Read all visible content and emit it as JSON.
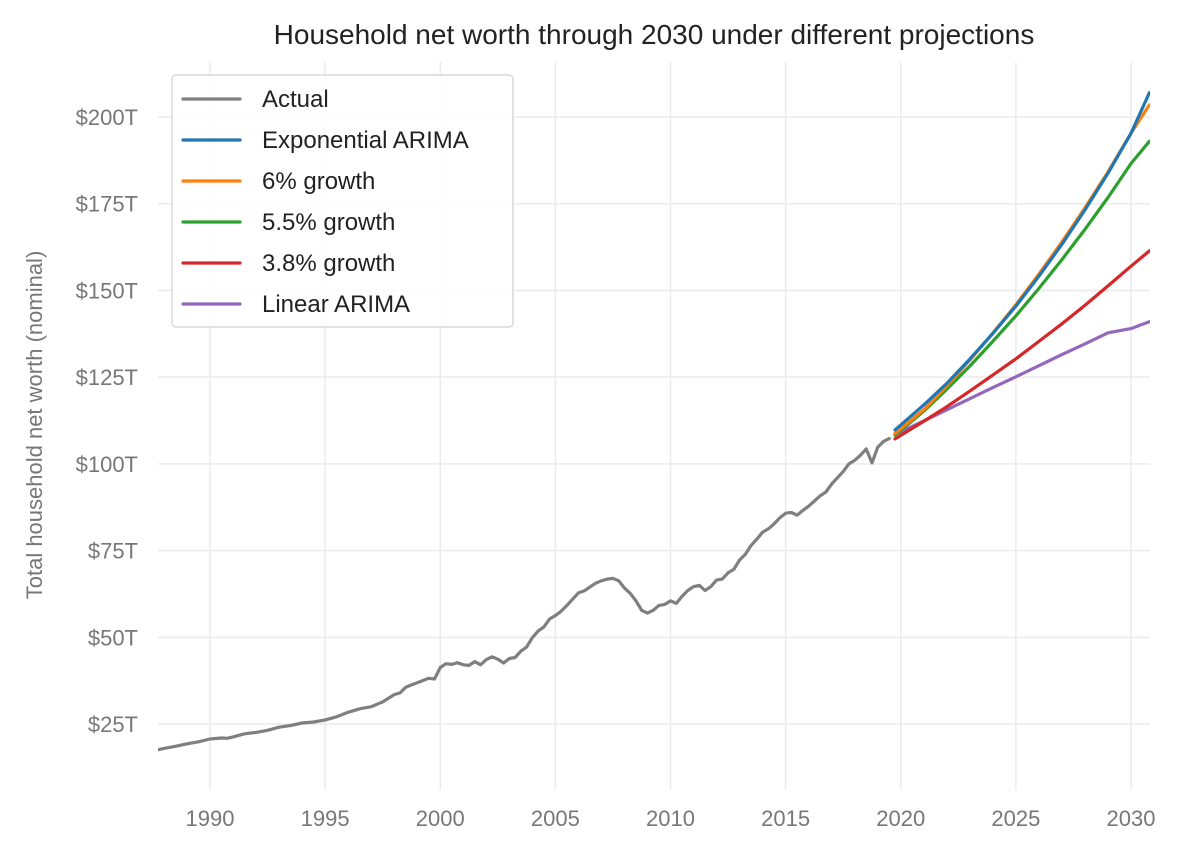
{
  "chart_data": {
    "type": "line",
    "title": "Household net worth through 2030 under different projections",
    "xlabel": "",
    "ylabel": "Total household net worth (nominal)",
    "xlim": [
      1987.75,
      2030.8
    ],
    "ylim": [
      0,
      212
    ],
    "grid": true,
    "legend_position": "top-left",
    "x_ticks": [
      1990,
      1995,
      2000,
      2005,
      2010,
      2015,
      2020,
      2025,
      2030
    ],
    "x_tick_labels": [
      "1990",
      "1995",
      "2000",
      "2005",
      "2010",
      "2015",
      "2020",
      "2025",
      "2030"
    ],
    "y_ticks": [
      25,
      50,
      75,
      100,
      125,
      150,
      175,
      200
    ],
    "y_tick_labels": [
      "$25T",
      "$50T",
      "$75T",
      "$100T",
      "$125T",
      "$150T",
      "$175T",
      "$200T"
    ],
    "series": [
      {
        "name": "Actual",
        "color": "#7f7f7f",
        "x": [
          1987.75,
          1988.0,
          1988.5,
          1989.0,
          1989.5,
          1990.0,
          1990.5,
          1990.75,
          1991.0,
          1991.5,
          1992.0,
          1992.5,
          1993.0,
          1993.5,
          1994.0,
          1994.5,
          1995.0,
          1995.5,
          1996.0,
          1996.5,
          1997.0,
          1997.5,
          1998.0,
          1998.25,
          1998.5,
          1998.75,
          1999.0,
          1999.5,
          1999.75,
          2000.0,
          2000.25,
          2000.5,
          2000.75,
          2001.0,
          2001.25,
          2001.5,
          2001.75,
          2002.0,
          2002.25,
          2002.5,
          2002.75,
          2003.0,
          2003.25,
          2003.5,
          2003.75,
          2004.0,
          2004.25,
          2004.5,
          2004.75,
          2005.0,
          2005.25,
          2005.5,
          2005.75,
          2006.0,
          2006.25,
          2006.5,
          2006.75,
          2007.0,
          2007.25,
          2007.5,
          2007.75,
          2008.0,
          2008.25,
          2008.5,
          2008.75,
          2009.0,
          2009.25,
          2009.5,
          2009.75,
          2010.0,
          2010.25,
          2010.5,
          2010.75,
          2011.0,
          2011.25,
          2011.5,
          2011.75,
          2012.0,
          2012.25,
          2012.5,
          2012.75,
          2013.0,
          2013.25,
          2013.5,
          2013.75,
          2014.0,
          2014.25,
          2014.5,
          2014.75,
          2015.0,
          2015.25,
          2015.5,
          2015.75,
          2016.0,
          2016.25,
          2016.5,
          2016.75,
          2017.0,
          2017.25,
          2017.5,
          2017.75,
          2018.0,
          2018.25,
          2018.5,
          2018.75,
          2019.0,
          2019.25,
          2019.5
        ],
        "values": [
          17.6,
          18.0,
          18.6,
          19.3,
          19.9,
          20.7,
          21.0,
          20.9,
          21.3,
          22.2,
          22.6,
          23.2,
          24.1,
          24.6,
          25.3,
          25.6,
          26.2,
          27.1,
          28.4,
          29.4,
          30.0,
          31.4,
          33.5,
          34.0,
          35.6,
          36.3,
          36.9,
          38.2,
          38.0,
          41.3,
          42.4,
          42.2,
          42.7,
          42.1,
          41.9,
          43.0,
          42.1,
          43.6,
          44.4,
          43.7,
          42.6,
          43.9,
          44.2,
          46.0,
          47.2,
          49.9,
          51.8,
          53.0,
          55.3,
          56.3,
          57.5,
          59.2,
          61.0,
          62.8,
          63.4,
          64.5,
          65.6,
          66.3,
          66.8,
          67.0,
          66.3,
          64.2,
          62.7,
          60.5,
          57.8,
          57.0,
          57.8,
          59.2,
          59.5,
          60.5,
          59.8,
          61.8,
          63.5,
          64.6,
          65.0,
          63.5,
          64.6,
          66.5,
          66.8,
          68.6,
          69.6,
          72.3,
          73.9,
          76.5,
          78.3,
          80.3,
          81.3,
          82.7,
          84.5,
          85.8,
          86.0,
          85.2,
          86.6,
          87.8,
          89.3,
          90.8,
          91.9,
          94.2,
          96.0,
          97.8,
          100.0,
          101.0,
          102.5,
          104.3,
          100.3,
          104.8,
          106.5,
          107.3
        ]
      },
      {
        "name": "Exponential ARIMA",
        "color": "#1f77b4",
        "x": [
          2019.75,
          2021,
          2022,
          2023,
          2024,
          2025,
          2026,
          2027,
          2028,
          2029,
          2030,
          2030.8
        ],
        "values": [
          109.8,
          117.0,
          123.2,
          130.2,
          137.6,
          145.5,
          154.1,
          163.3,
          173.2,
          183.8,
          195.3,
          207.0
        ]
      },
      {
        "name": "6% growth",
        "color": "#ff7f0e",
        "x": [
          2019.75,
          2021,
          2022,
          2023,
          2024,
          2025,
          2026,
          2027,
          2028,
          2029,
          2030,
          2030.8
        ],
        "values": [
          108.8,
          115.6,
          122.5,
          129.9,
          137.7,
          145.9,
          154.7,
          164.0,
          173.8,
          184.2,
          195.3,
          203.5
        ]
      },
      {
        "name": "5.5% growth",
        "color": "#2ca02c",
        "x": [
          2019.75,
          2021,
          2022,
          2023,
          2024,
          2025,
          2026,
          2027,
          2028,
          2029,
          2030,
          2030.8
        ],
        "values": [
          108.3,
          115.2,
          121.5,
          128.2,
          135.3,
          142.7,
          150.6,
          158.9,
          167.6,
          176.8,
          186.6,
          193.0
        ]
      },
      {
        "name": "3.8% growth",
        "color": "#d62728",
        "x": [
          2019.75,
          2021,
          2022,
          2023,
          2024,
          2025,
          2026,
          2027,
          2028,
          2029,
          2030,
          2030.8
        ],
        "values": [
          107.2,
          112.3,
          116.5,
          121.0,
          125.6,
          130.3,
          135.3,
          140.4,
          145.7,
          151.3,
          157.0,
          161.4
        ]
      },
      {
        "name": "Linear ARIMA",
        "color": "#9467bd",
        "x": [
          2019.75,
          2021,
          2022,
          2023,
          2024,
          2025,
          2026,
          2027,
          2028,
          2029,
          2030,
          2030.8
        ],
        "values": [
          108.5,
          112.4,
          115.6,
          118.8,
          122.0,
          125.1,
          128.3,
          131.5,
          134.6,
          137.8,
          139.0,
          141.0
        ]
      }
    ]
  }
}
